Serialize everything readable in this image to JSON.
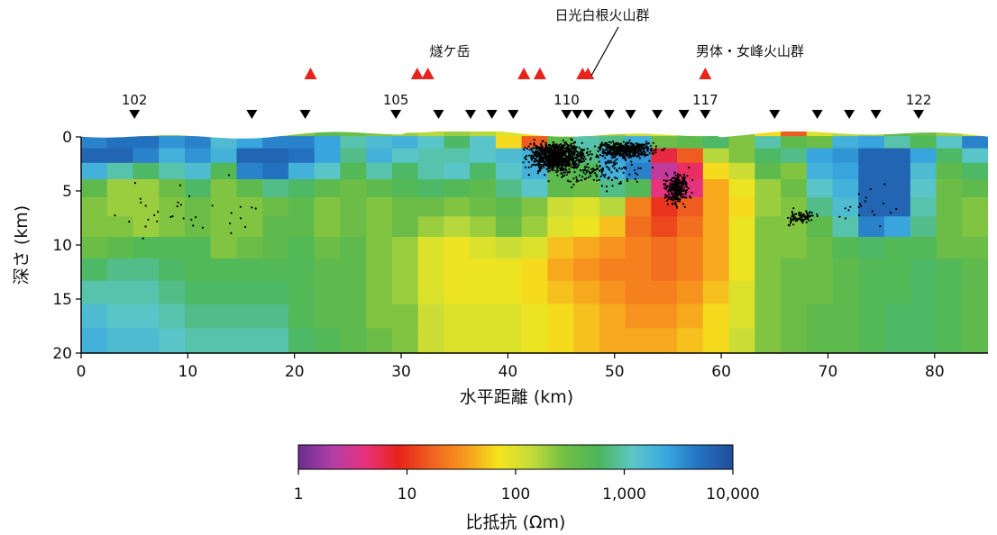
{
  "chart_data": {
    "type": "heatmap",
    "title": "",
    "xlabel": "水平距離 (km)",
    "ylabel": "深さ (km)",
    "xlim": [
      0,
      85
    ],
    "ylim": [
      20,
      0
    ],
    "x_ticks": [
      "0",
      "10",
      "20",
      "30",
      "40",
      "50",
      "60",
      "70",
      "80"
    ],
    "y_ticks": [
      "0",
      "5",
      "10",
      "15",
      "20"
    ],
    "colorbar": {
      "label": "比抵抗 (Ωm)",
      "scale": "log",
      "range": [
        1,
        10000
      ],
      "tick_labels": [
        "1",
        "10",
        "100",
        "1,000",
        "10,000"
      ],
      "colors": [
        "#6b2d8f",
        "#b03fa8",
        "#e8327c",
        "#e8231c",
        "#f0621f",
        "#f79a1e",
        "#f5e51e",
        "#c3dc3a",
        "#6fbe44",
        "#4bb65b",
        "#5cc7c7",
        "#3aa8e0",
        "#2272c0",
        "#214c9c"
      ]
    },
    "resistivity_log10": [
      [
        2.7,
        2.5,
        2.3,
        2.5,
        2.6,
        2.5,
        2.2,
        2.3,
        2.4,
        2.6,
        2.5,
        2.4,
        2.3,
        2.2,
        2.3,
        2.2,
        2.0,
        1.8,
        2.0,
        2.2,
        2.3,
        2.1,
        2.0,
        2.4,
        2.6,
        2.4,
        1.8,
        1.2,
        2.0,
        2.2,
        2.3,
        2.6,
        2.5,
        2.3,
        2.1
      ],
      [
        3.6,
        3.7,
        3.7,
        3.5,
        3.6,
        3.2,
        3.4,
        3.6,
        3.6,
        3.4,
        3.0,
        3.2,
        3.3,
        3.1,
        2.8,
        3.1,
        1.8,
        1.2,
        2.6,
        3.0,
        2.9,
        3.3,
        2.5,
        2.6,
        2.8,
        2.4,
        3.0,
        2.6,
        2.5,
        3.3,
        3.4,
        3.0,
        2.7,
        3.1,
        3.6
      ],
      [
        3.8,
        3.8,
        3.6,
        3.3,
        3.5,
        3.3,
        3.8,
        3.8,
        3.7,
        3.4,
        2.9,
        3.3,
        3.1,
        3.0,
        3.0,
        3.1,
        3.2,
        3.3,
        2.7,
        2.9,
        3.4,
        3.5,
        0.8,
        1.2,
        2.2,
        2.4,
        2.8,
        2.9,
        3.4,
        3.5,
        3.8,
        3.8,
        3.4,
        2.8,
        3.1
      ],
      [
        3.3,
        3.0,
        2.8,
        3.0,
        3.2,
        2.7,
        3.6,
        3.7,
        3.3,
        3.1,
        2.7,
        3.0,
        2.8,
        3.0,
        3.1,
        2.8,
        3.1,
        3.3,
        2.6,
        2.7,
        3.3,
        3.6,
        0.4,
        0.7,
        1.8,
        2.1,
        2.6,
        2.4,
        3.3,
        3.4,
        3.8,
        3.8,
        3.2,
        2.6,
        2.8
      ],
      [
        2.6,
        2.3,
        2.3,
        2.5,
        2.8,
        2.4,
        2.6,
        2.9,
        2.8,
        2.6,
        2.5,
        2.6,
        2.7,
        2.8,
        2.7,
        2.6,
        2.9,
        3.1,
        2.6,
        2.5,
        2.9,
        2.7,
        0.6,
        0.6,
        1.6,
        1.9,
        2.3,
        2.5,
        3.1,
        3.3,
        3.8,
        3.8,
        3.1,
        2.5,
        2.6
      ],
      [
        2.4,
        2.3,
        2.3,
        2.4,
        2.5,
        2.4,
        2.4,
        2.5,
        2.6,
        2.4,
        2.5,
        2.4,
        2.5,
        2.5,
        2.4,
        2.5,
        2.6,
        2.4,
        2.1,
        2.0,
        2.2,
        1.4,
        1.0,
        1.2,
        1.6,
        1.8,
        2.3,
        2.4,
        2.9,
        3.2,
        3.8,
        3.8,
        3.0,
        2.5,
        2.4
      ],
      [
        2.4,
        2.4,
        2.3,
        2.4,
        2.5,
        2.4,
        2.4,
        2.6,
        2.6,
        2.4,
        2.5,
        2.4,
        2.5,
        2.3,
        2.2,
        2.3,
        2.5,
        2.3,
        2.0,
        1.9,
        1.7,
        1.3,
        1.1,
        1.3,
        1.6,
        1.9,
        2.4,
        2.4,
        2.6,
        3.0,
        3.6,
        3.4,
        2.9,
        2.5,
        2.4
      ],
      [
        2.5,
        2.6,
        2.7,
        2.7,
        2.7,
        2.4,
        2.5,
        2.6,
        2.7,
        2.5,
        2.6,
        2.4,
        2.3,
        2.0,
        1.9,
        2.0,
        2.1,
        2.0,
        1.7,
        1.6,
        1.5,
        1.4,
        1.3,
        1.4,
        1.6,
        1.9,
        2.4,
        2.4,
        2.5,
        2.7,
        2.8,
        2.7,
        2.7,
        2.5,
        2.5
      ],
      [
        2.8,
        2.9,
        2.9,
        2.8,
        2.7,
        2.7,
        2.7,
        2.7,
        2.7,
        2.6,
        2.6,
        2.4,
        2.3,
        2.0,
        1.9,
        1.9,
        1.9,
        1.8,
        1.6,
        1.5,
        1.4,
        1.4,
        1.3,
        1.4,
        1.6,
        1.9,
        2.4,
        2.5,
        2.5,
        2.6,
        2.7,
        2.7,
        2.8,
        2.7,
        2.6
      ],
      [
        3.0,
        3.0,
        3.0,
        2.9,
        2.8,
        2.8,
        2.8,
        2.8,
        2.7,
        2.6,
        2.6,
        2.4,
        2.3,
        2.0,
        1.9,
        1.9,
        1.9,
        1.8,
        1.7,
        1.6,
        1.5,
        1.4,
        1.4,
        1.5,
        1.7,
        2.0,
        2.4,
        2.5,
        2.5,
        2.6,
        2.7,
        2.7,
        2.8,
        2.7,
        2.6
      ],
      [
        3.2,
        3.1,
        3.1,
        3.0,
        2.9,
        2.9,
        2.9,
        2.9,
        2.7,
        2.6,
        2.6,
        2.4,
        2.4,
        2.1,
        2.0,
        2.0,
        2.0,
        1.9,
        1.8,
        1.7,
        1.6,
        1.5,
        1.5,
        1.6,
        1.8,
        2.0,
        2.4,
        2.5,
        2.6,
        2.6,
        2.7,
        2.8,
        2.8,
        2.7,
        2.6
      ],
      [
        3.3,
        3.2,
        3.2,
        3.1,
        3.0,
        3.0,
        3.0,
        3.0,
        2.8,
        2.7,
        2.6,
        2.5,
        2.4,
        2.1,
        2.0,
        2.0,
        2.0,
        1.9,
        1.8,
        1.7,
        1.6,
        1.6,
        1.6,
        1.7,
        1.8,
        2.1,
        2.4,
        2.5,
        2.6,
        2.6,
        2.7,
        2.8,
        2.8,
        2.7,
        2.6
      ]
    ],
    "stations": [
      {
        "label": "102",
        "x": 5.0
      },
      {
        "label": "",
        "x": 16.0
      },
      {
        "label": "",
        "x": 21.0
      },
      {
        "label": "105",
        "x": 29.5
      },
      {
        "label": "",
        "x": 33.5
      },
      {
        "label": "",
        "x": 36.5
      },
      {
        "label": "",
        "x": 38.5
      },
      {
        "label": "",
        "x": 40.5
      },
      {
        "label": "110",
        "x": 45.5
      },
      {
        "label": "",
        "x": 46.5
      },
      {
        "label": "",
        "x": 47.5
      },
      {
        "label": "",
        "x": 49.5
      },
      {
        "label": "",
        "x": 51.5
      },
      {
        "label": "",
        "x": 54.0
      },
      {
        "label": "",
        "x": 56.5
      },
      {
        "label": "117",
        "x": 58.5
      },
      {
        "label": "",
        "x": 65.0
      },
      {
        "label": "",
        "x": 69.0
      },
      {
        "label": "",
        "x": 72.0
      },
      {
        "label": "",
        "x": 74.5
      },
      {
        "label": "122",
        "x": 78.5
      }
    ],
    "volcanoes_x": [
      21.5,
      31.5,
      32.5,
      41.5,
      43.0,
      47.0,
      47.5,
      58.5
    ],
    "annotations": [
      {
        "text": "燧ケ岳",
        "x": 34.5
      },
      {
        "text": "日光白根火山群",
        "x": 49.0
      },
      {
        "text": "男体・女峰火山群",
        "x": 61.5
      }
    ],
    "hypocenters": [
      {
        "x": 44.5,
        "z": 1.8,
        "spread_x": 2.3,
        "spread_z": 1.2,
        "n": 950
      },
      {
        "x": 51.0,
        "z": 1.2,
        "spread_x": 2.6,
        "spread_z": 0.7,
        "n": 500
      },
      {
        "x": 55.8,
        "z": 4.8,
        "spread_x": 1.0,
        "spread_z": 1.3,
        "n": 300
      },
      {
        "x": 48.0,
        "z": 3.0,
        "spread_x": 4.5,
        "spread_z": 1.8,
        "n": 200
      },
      {
        "x": 67.5,
        "z": 7.5,
        "spread_x": 1.3,
        "spread_z": 0.7,
        "n": 80
      },
      {
        "x": 10.0,
        "z": 7.0,
        "spread_x": 9.0,
        "spread_z": 2.5,
        "n": 35
      },
      {
        "x": 74.0,
        "z": 6.0,
        "spread_x": 3.0,
        "spread_z": 2.0,
        "n": 20
      }
    ],
    "grid": false
  }
}
